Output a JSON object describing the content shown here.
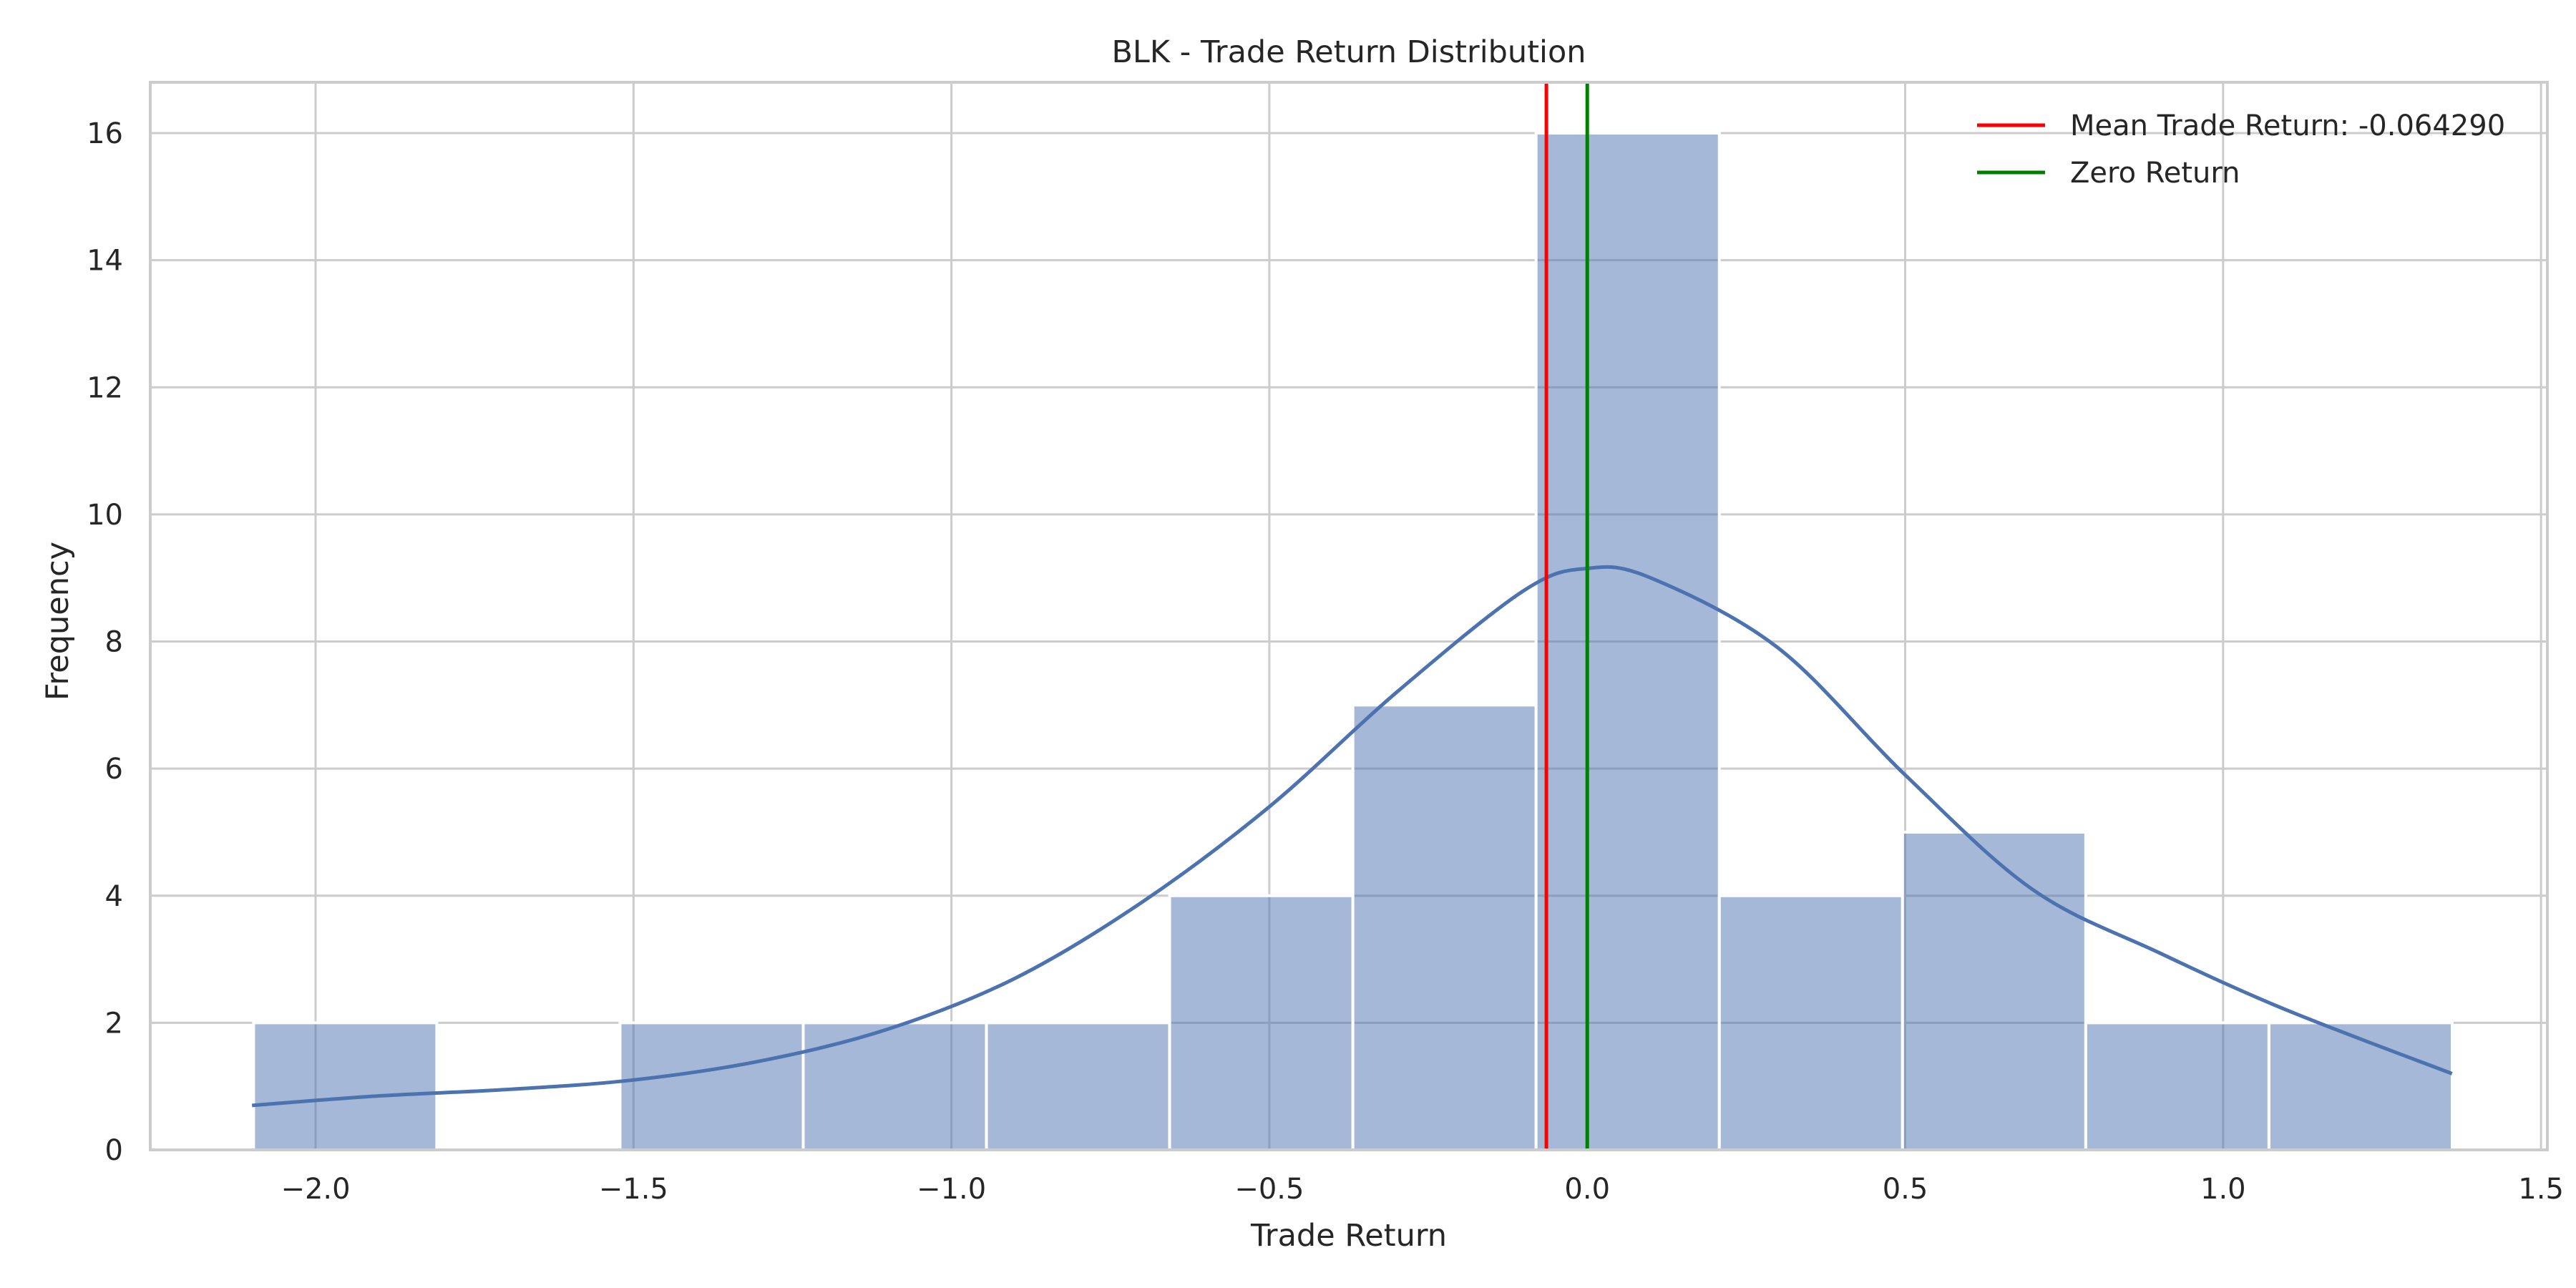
{
  "chart_data": {
    "type": "bar",
    "subtype": "histogram-with-kde",
    "title": "BLK - Trade Return Distribution",
    "xlabel": "Trade Return",
    "ylabel": "Frequency",
    "xlim": [
      -2.26,
      1.51
    ],
    "ylim": [
      0,
      16.8
    ],
    "x_ticks": [
      -2.0,
      -1.5,
      -1.0,
      -0.5,
      0.0,
      0.5,
      1.0,
      1.5
    ],
    "x_tick_labels": [
      "−2.0",
      "−1.5",
      "−1.0",
      "−0.5",
      "0.0",
      "0.5",
      "1.0",
      "1.5"
    ],
    "y_ticks": [
      0,
      2,
      4,
      6,
      8,
      10,
      12,
      14,
      16
    ],
    "y_tick_labels": [
      "0",
      "2",
      "4",
      "6",
      "8",
      "10",
      "12",
      "14",
      "16"
    ],
    "grid": true,
    "legend_position": "top-right",
    "bin_edges": [
      -2.0975,
      -1.8094,
      -1.5212,
      -1.2331,
      -0.9449,
      -0.6568,
      -0.3686,
      -0.0805,
      0.2077,
      0.4958,
      0.784,
      1.0721,
      1.3603
    ],
    "counts": [
      2,
      0,
      2,
      2,
      2,
      4,
      7,
      16,
      4,
      5,
      2,
      2
    ],
    "bar_color": "#4c72b0",
    "bar_opacity": 0.5,
    "kde": {
      "color": "#4c72b0",
      "x": [
        -2.1,
        -1.9,
        -1.7,
        -1.5,
        -1.3,
        -1.1,
        -0.9,
        -0.7,
        -0.5,
        -0.3,
        -0.1,
        0.0,
        0.1,
        0.3,
        0.5,
        0.7,
        0.9,
        1.1,
        1.36
      ],
      "y": [
        0.7,
        0.85,
        0.95,
        1.1,
        1.4,
        1.9,
        2.7,
        3.9,
        5.4,
        7.2,
        8.8,
        9.15,
        9.0,
        7.9,
        5.9,
        4.1,
        3.1,
        2.2,
        1.2
      ]
    },
    "vlines": [
      {
        "name": "Mean Trade Return: -0.064290",
        "x": -0.06429,
        "color": "#ff0000"
      },
      {
        "name": "Zero Return",
        "x": 0.0,
        "color": "#008000"
      }
    ],
    "legend": [
      {
        "label": "Mean Trade Return: -0.064290",
        "color": "#ff0000"
      },
      {
        "label": "Zero Return",
        "color": "#008000"
      }
    ]
  }
}
